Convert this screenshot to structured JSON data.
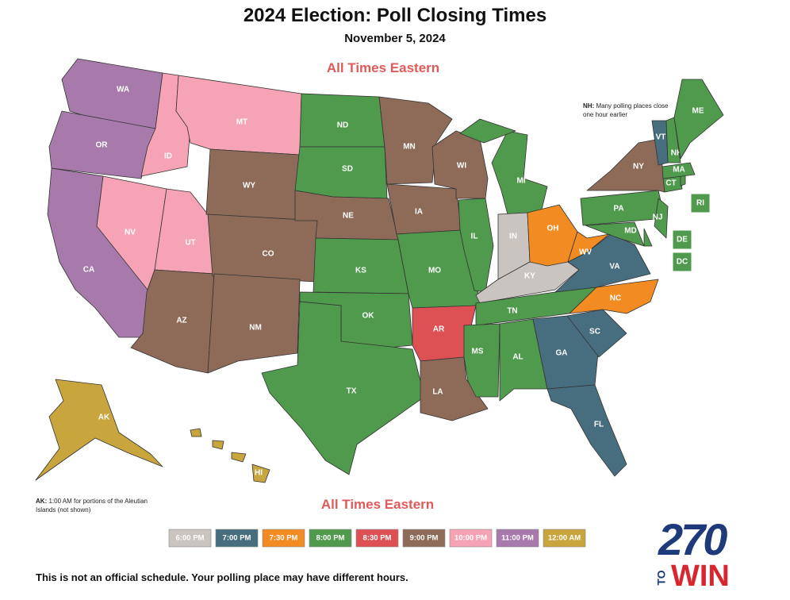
{
  "title": "2024 Election: Poll Closing Times",
  "subtitle": "November 5, 2024",
  "time_zone_note_top": "All Times Eastern",
  "time_zone_note_bottom": "All Times Eastern",
  "nh_note": {
    "label": "NH:",
    "text": "Many polling places close one hour earlier"
  },
  "ak_note": {
    "label": "AK:",
    "text": "1:00 AM for portions of the Aleutian Islands (not shown)"
  },
  "disclaimer": "This is not an official schedule. Your polling place may have different hours.",
  "logo": {
    "number": "270",
    "to": "TO",
    "win": "WIN"
  },
  "legend": [
    {
      "label": "6:00 PM",
      "color": "#c9c4c0"
    },
    {
      "label": "7:00 PM",
      "color": "#476e7f"
    },
    {
      "label": "7:30 PM",
      "color": "#f28b22"
    },
    {
      "label": "8:00 PM",
      "color": "#4f9a4c"
    },
    {
      "label": "8:30 PM",
      "color": "#dd5054"
    },
    {
      "label": "9:00 PM",
      "color": "#8d6b58"
    },
    {
      "label": "10:00 PM",
      "color": "#f6a4b5"
    },
    {
      "label": "11:00 PM",
      "color": "#a77aab"
    },
    {
      "label": "12:00 AM",
      "color": "#c9a53d"
    }
  ],
  "states": [
    {
      "label": "WA",
      "color": "#a77aab"
    },
    {
      "label": "OR",
      "color": "#a77aab"
    },
    {
      "label": "CA",
      "color": "#a77aab"
    },
    {
      "label": "ID",
      "color": "#f6a4b5"
    },
    {
      "label": "NV",
      "color": "#f6a4b5"
    },
    {
      "label": "UT",
      "color": "#f6a4b5"
    },
    {
      "label": "AZ",
      "color": "#8d6b58"
    },
    {
      "label": "MT",
      "color": "#f6a4b5"
    },
    {
      "label": "WY",
      "color": "#8d6b58"
    },
    {
      "label": "CO",
      "color": "#8d6b58"
    },
    {
      "label": "NM",
      "color": "#8d6b58"
    },
    {
      "label": "ND",
      "color": "#4f9a4c"
    },
    {
      "label": "SD",
      "color": "#4f9a4c"
    },
    {
      "label": "NE",
      "color": "#8d6b58"
    },
    {
      "label": "KS",
      "color": "#4f9a4c"
    },
    {
      "label": "OK",
      "color": "#4f9a4c"
    },
    {
      "label": "TX",
      "color": "#4f9a4c"
    },
    {
      "label": "MN",
      "color": "#8d6b58"
    },
    {
      "label": "IA",
      "color": "#8d6b58"
    },
    {
      "label": "MO",
      "color": "#4f9a4c"
    },
    {
      "label": "AR",
      "color": "#dd5054"
    },
    {
      "label": "LA",
      "color": "#8d6b58"
    },
    {
      "label": "WI",
      "color": "#8d6b58"
    },
    {
      "label": "IL",
      "color": "#4f9a4c"
    },
    {
      "label": "MI",
      "color": "#4f9a4c"
    },
    {
      "label": "IN",
      "color": "#c9c4c0"
    },
    {
      "label": "OH",
      "color": "#f28b22"
    },
    {
      "label": "KY",
      "color": "#c9c4c0"
    },
    {
      "label": "TN",
      "color": "#4f9a4c"
    },
    {
      "label": "MS",
      "color": "#4f9a4c"
    },
    {
      "label": "AL",
      "color": "#4f9a4c"
    },
    {
      "label": "GA",
      "color": "#476e7f"
    },
    {
      "label": "FL",
      "color": "#476e7f"
    },
    {
      "label": "SC",
      "color": "#476e7f"
    },
    {
      "label": "NC",
      "color": "#f28b22"
    },
    {
      "label": "VA",
      "color": "#476e7f"
    },
    {
      "label": "WV",
      "color": "#f28b22"
    },
    {
      "label": "PA",
      "color": "#4f9a4c"
    },
    {
      "label": "NY",
      "color": "#8d6b58"
    },
    {
      "label": "MD",
      "color": "#4f9a4c"
    },
    {
      "label": "DE",
      "color": "#4f9a4c"
    },
    {
      "label": "NJ",
      "color": "#4f9a4c"
    },
    {
      "label": "CT",
      "color": "#4f9a4c"
    },
    {
      "label": "RI",
      "color": "#4f9a4c"
    },
    {
      "label": "MA",
      "color": "#4f9a4c"
    },
    {
      "label": "VT",
      "color": "#476e7f"
    },
    {
      "label": "NH",
      "color": "#4f9a4c"
    },
    {
      "label": "ME",
      "color": "#4f9a4c"
    },
    {
      "label": "DC",
      "color": "#4f9a4c"
    },
    {
      "label": "AK",
      "color": "#c9a53d"
    },
    {
      "label": "HI",
      "color": "#c9a53d"
    }
  ]
}
